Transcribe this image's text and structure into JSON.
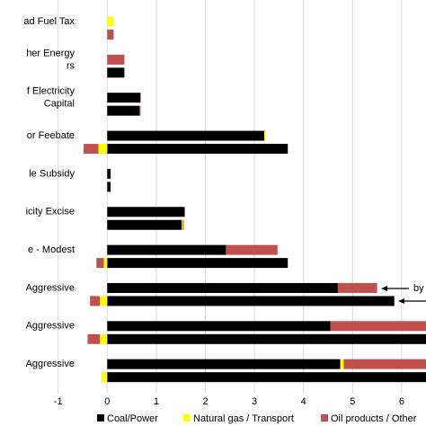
{
  "chart_data": {
    "type": "hbar-stacked",
    "categories": [
      [
        "ad Fuel Tax"
      ],
      null,
      [
        "her Energy",
        "rs"
      ],
      null,
      [
        "f Electricity",
        "Capital"
      ],
      null,
      [
        "or Feebate"
      ],
      null,
      [
        "le Subsidy"
      ],
      null,
      [
        "icity Excise"
      ],
      null,
      [
        "e - Modest"
      ],
      null,
      [
        "Aggressive"
      ],
      null,
      [
        "Aggressive"
      ],
      null,
      [
        "Aggressive"
      ],
      null
    ],
    "series": [
      {
        "name": "Coal/Power",
        "color": "#000000",
        "values": [
          0,
          0,
          0,
          0.35,
          0.68,
          0.66,
          3.2,
          3.68,
          0.07,
          0.07,
          1.58,
          1.52,
          2.42,
          3.68,
          4.7,
          5.85,
          4.55,
          6.8,
          4.75,
          6.9
        ]
      },
      {
        "name": "Natural gas / Transport",
        "color": "#ffff00",
        "values": [
          0.13,
          0,
          0,
          0,
          0,
          0,
          0.02,
          -0.18,
          0,
          0,
          0,
          0.02,
          0,
          -0.07,
          0,
          -0.15,
          0,
          -0.15,
          0.07,
          -0.12
        ]
      },
      {
        "name": "Oil products / Other",
        "color": "#c0504d",
        "values": [
          0,
          0.13,
          0.35,
          0,
          0,
          0.02,
          0,
          -0.3,
          0,
          0,
          0,
          0.02,
          1.05,
          -0.15,
          0.8,
          -0.2,
          1.95,
          -0.25,
          1.75,
          0
        ]
      }
    ],
    "xlim": [
      -1,
      6.5
    ],
    "xticks": [
      -1,
      0,
      1,
      2,
      3,
      4,
      5,
      6
    ],
    "grid": true,
    "annotations": [
      "by"
    ]
  }
}
